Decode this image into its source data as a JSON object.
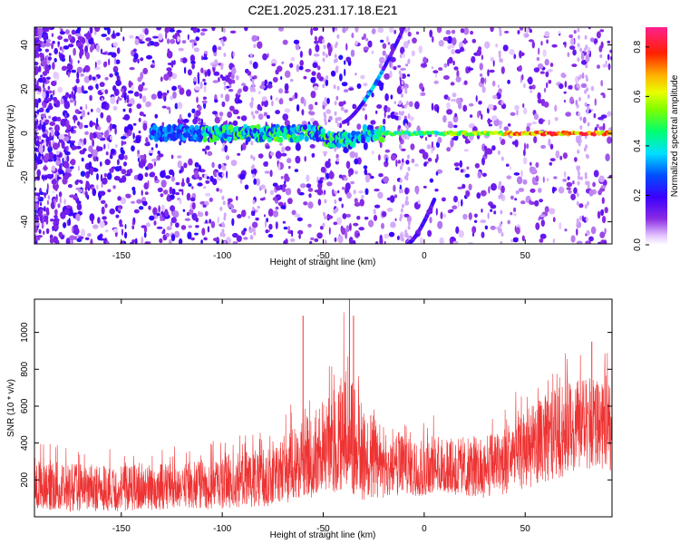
{
  "title": "C2E1.2025.231.17.18.E21",
  "colors": {
    "snr_line": "#ee3333",
    "frame": "#000000",
    "background": "#ffffff"
  },
  "chart_data": [
    {
      "type": "heatmap",
      "xlabel": "Height of straight line (km)",
      "ylabel": "Frequency (Hz)",
      "xlim": [
        -193,
        93
      ],
      "ylim": [
        -50,
        48
      ],
      "xticks": [
        -150,
        -100,
        -50,
        0,
        50
      ],
      "yticks": [
        -40,
        -20,
        0,
        20,
        40
      ],
      "xtick_labels": [
        "-150",
        "-100",
        "-50",
        "0",
        "50"
      ],
      "ytick_labels": [
        "-40",
        "-20",
        "0",
        "20",
        "40"
      ],
      "grid": false,
      "colorbar": {
        "label": "Normalized spectral amplitude",
        "range": [
          0.0,
          0.88
        ],
        "ticks": [
          0.0,
          0.2,
          0.4,
          0.6,
          0.8
        ],
        "tick_labels": [
          "0.0",
          "0.2",
          "0.4",
          "0.6",
          "0.8"
        ],
        "colormap": "rainbow (white-violet-blue-cyan-green-yellow-red-magenta)"
      },
      "features": [
        {
          "name": "zero-Doppler echo band",
          "x_range": [
            -135,
            93
          ],
          "y_center": 0,
          "peak_amplitude": 0.8
        },
        {
          "name": "upper chirp",
          "x_from": -40,
          "x_to": -10,
          "y_from": 5,
          "y_to": 48
        },
        {
          "name": "lower chirp",
          "x_from": -8,
          "x_to": 5,
          "y_from": -50,
          "y_to": -30
        }
      ]
    },
    {
      "type": "line",
      "xlabel": "Height of straight line (km)",
      "ylabel": "SNR (10 * v/v)",
      "xlim": [
        -193,
        93
      ],
      "ylim": [
        0,
        1180
      ],
      "xticks": [
        -150,
        -100,
        -50,
        0,
        50
      ],
      "yticks": [
        200,
        400,
        600,
        800,
        1000
      ],
      "xtick_labels": [
        "-150",
        "-100",
        "-50",
        "0",
        "50"
      ],
      "ytick_labels": [
        "200",
        "400",
        "600",
        "800",
        "1000"
      ],
      "grid": false,
      "series_envelope": {
        "x": [
          -193,
          -175,
          -150,
          -125,
          -100,
          -75,
          -60,
          -50,
          -40,
          -30,
          -20,
          -10,
          0,
          10,
          20,
          30,
          40,
          50,
          60,
          70,
          80,
          93
        ],
        "min": [
          40,
          30,
          30,
          40,
          40,
          60,
          90,
          120,
          130,
          90,
          100,
          110,
          110,
          120,
          110,
          100,
          120,
          150,
          180,
          220,
          260,
          250
        ],
        "max": [
          430,
          380,
          370,
          380,
          420,
          500,
          700,
          820,
          1170,
          800,
          640,
          580,
          560,
          560,
          540,
          560,
          640,
          720,
          820,
          900,
          930,
          880
        ],
        "typical": [
          160,
          150,
          150,
          160,
          180,
          220,
          300,
          340,
          360,
          300,
          280,
          270,
          250,
          250,
          250,
          260,
          300,
          360,
          420,
          470,
          500,
          480
        ]
      },
      "spikes": [
        {
          "x": -60,
          "y": 1090
        },
        {
          "x": -37,
          "y": 1180
        },
        {
          "x": -35,
          "y": 1090
        },
        {
          "x": 83,
          "y": 950
        }
      ]
    }
  ]
}
